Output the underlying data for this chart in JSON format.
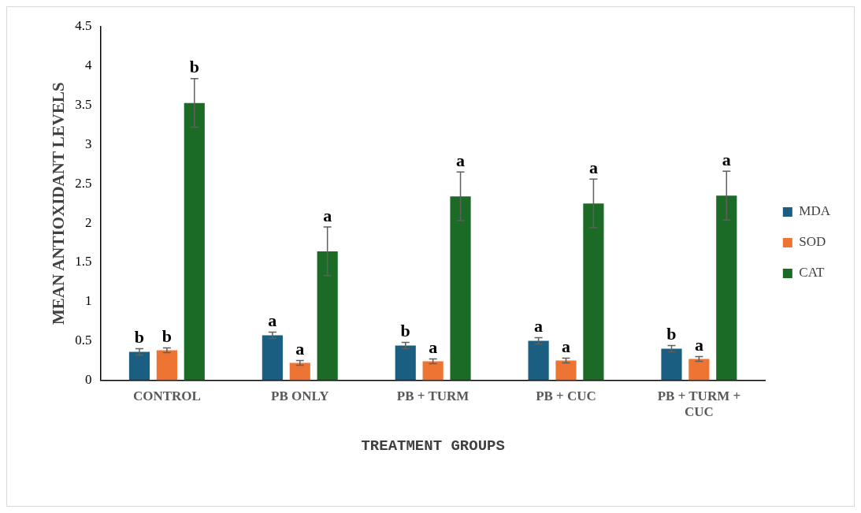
{
  "chart_data": {
    "type": "bar",
    "xlabel": "TREATMENT GROUPS",
    "ylabel": "MEAN ANTIOXIDANT LEVELS",
    "categories": [
      "CONTROL",
      "PB ONLY",
      "PB + TURM",
      "PB + CUC",
      "PB + TURM + CUC"
    ],
    "series": [
      {
        "name": "MDA",
        "color": "#1a5e82",
        "values": [
          0.36,
          0.57,
          0.44,
          0.5,
          0.4
        ],
        "errors": [
          0.04,
          0.04,
          0.04,
          0.04,
          0.04
        ],
        "value_labels": [
          "b",
          "a",
          "b",
          "a",
          "b"
        ]
      },
      {
        "name": "SOD",
        "color": "#ed7433",
        "values": [
          0.38,
          0.22,
          0.24,
          0.25,
          0.27
        ],
        "errors": [
          0.03,
          0.03,
          0.03,
          0.03,
          0.03
        ],
        "value_labels": [
          "b",
          "a",
          "a",
          "a",
          "a"
        ]
      },
      {
        "name": "CAT",
        "color": "#1b6b27",
        "values": [
          3.53,
          1.64,
          2.34,
          2.25,
          2.35
        ],
        "errors": [
          0.31,
          0.31,
          0.31,
          0.31,
          0.31
        ],
        "value_labels": [
          "b",
          "a",
          "a",
          "a",
          "a"
        ]
      }
    ],
    "ylim": [
      0,
      4.5
    ],
    "yticks": [
      0,
      0.5,
      1,
      1.5,
      2,
      2.5,
      3,
      3.5,
      4,
      4.5
    ],
    "grid": false,
    "legend": "right"
  }
}
